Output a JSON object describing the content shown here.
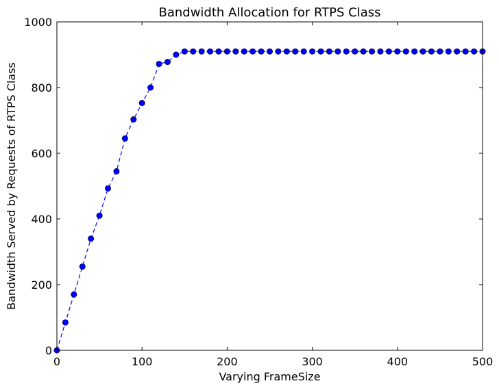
{
  "chart_data": {
    "type": "line",
    "title": "Bandwidth Allocation for RTPS Class",
    "xlabel": "Varying FrameSize",
    "ylabel": "Bandwidth Served by Requests of RTPS Class",
    "xlim": [
      0,
      500
    ],
    "ylim": [
      0,
      1000
    ],
    "xticks": [
      0,
      100,
      200,
      300,
      400,
      500
    ],
    "yticks": [
      0,
      200,
      400,
      600,
      800,
      1000
    ],
    "xtick_labels": [
      "0",
      "100",
      "200",
      "300",
      "400",
      "500"
    ],
    "ytick_labels": [
      "0",
      "200",
      "400",
      "600",
      "800",
      "1000"
    ],
    "grid": false,
    "series": [
      {
        "name": "RTPS",
        "color": "#0000ff",
        "line_style": "dashed",
        "marker": "circle",
        "x": [
          0,
          10,
          20,
          30,
          40,
          50,
          60,
          70,
          80,
          90,
          100,
          110,
          120,
          130,
          140,
          150,
          160,
          170,
          180,
          190,
          200,
          210,
          220,
          230,
          240,
          250,
          260,
          270,
          280,
          290,
          300,
          310,
          320,
          330,
          340,
          350,
          360,
          370,
          380,
          390,
          400,
          410,
          420,
          430,
          440,
          450,
          460,
          470,
          480,
          490,
          500
        ],
        "y": [
          0,
          85,
          170,
          255,
          340,
          410,
          493,
          545,
          645,
          703,
          753,
          800,
          872,
          878,
          900,
          910,
          910,
          910,
          910,
          910,
          910,
          910,
          910,
          910,
          910,
          910,
          910,
          910,
          910,
          910,
          910,
          910,
          910,
          910,
          910,
          910,
          910,
          910,
          910,
          910,
          910,
          910,
          910,
          910,
          910,
          910,
          910,
          910,
          910,
          910,
          910
        ]
      }
    ]
  }
}
